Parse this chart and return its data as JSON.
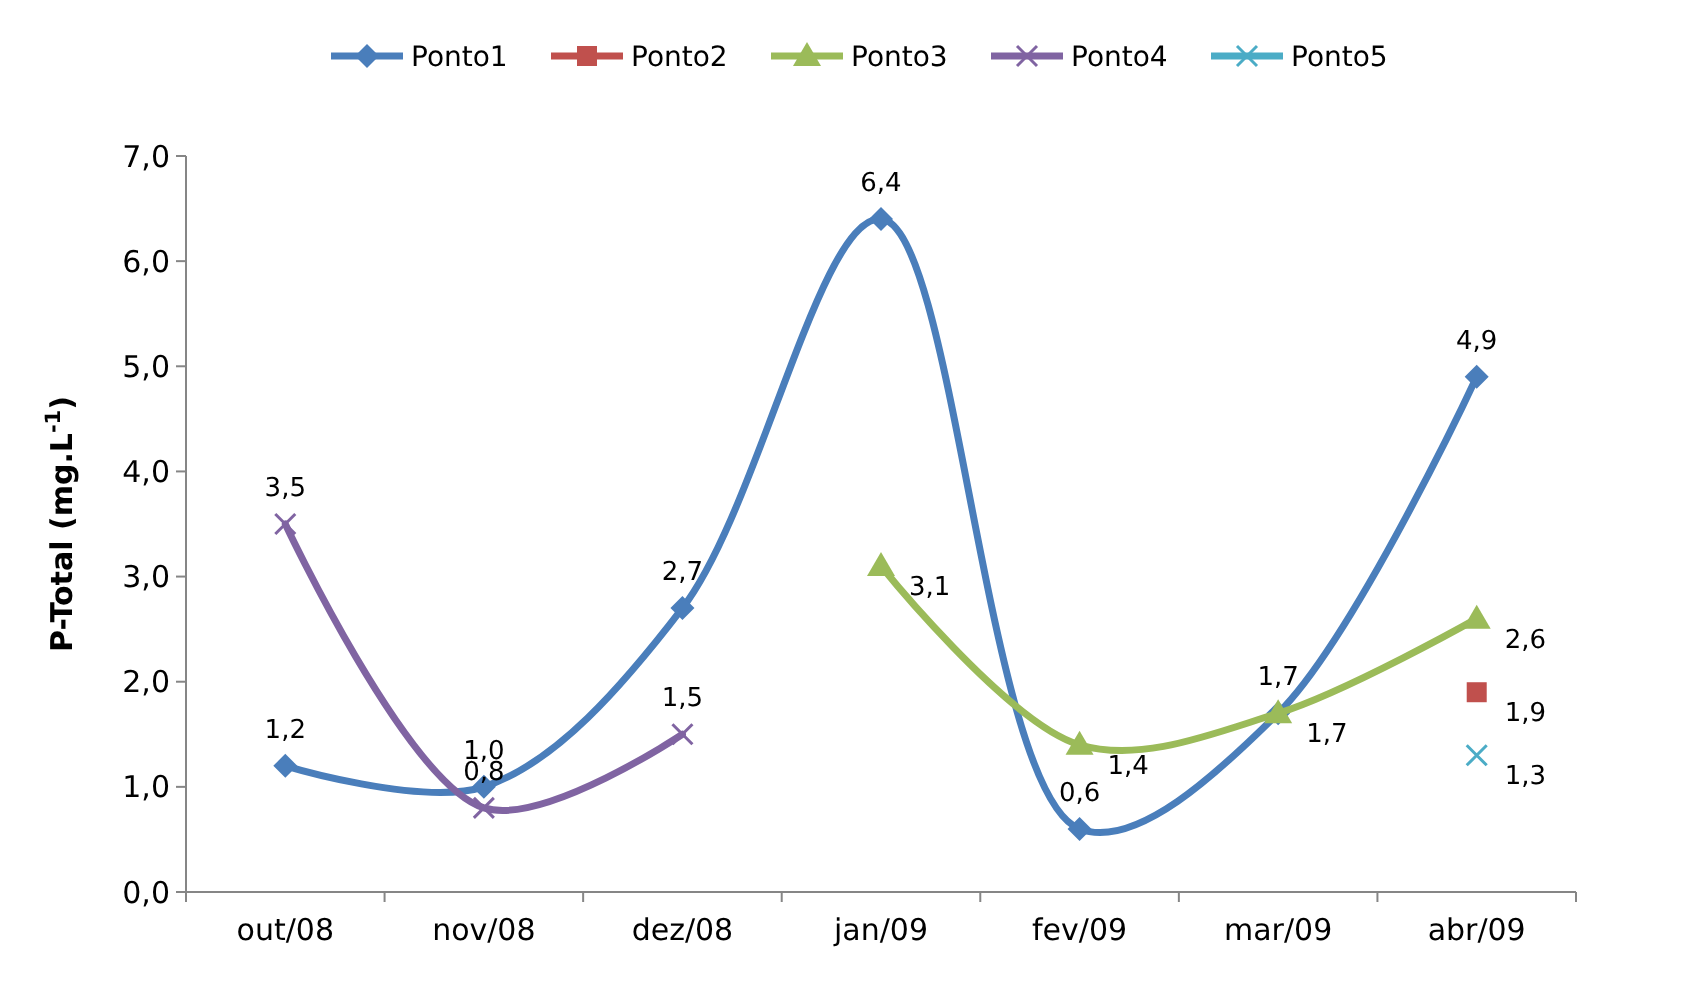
{
  "chart_data": {
    "type": "line",
    "ylabel": "P-Total (mg.L$^{-1}$)",
    "categories": [
      "out/08",
      "nov/08",
      "dez/08",
      "jan/09",
      "fev/09",
      "mar/09",
      "abr/09"
    ],
    "ylim": [
      0,
      7
    ],
    "yticks": [
      {
        "value": 0,
        "label": "0,0"
      },
      {
        "value": 1,
        "label": "1,0"
      },
      {
        "value": 2,
        "label": "2,0"
      },
      {
        "value": 3,
        "label": "3,0"
      },
      {
        "value": 4,
        "label": "4,0"
      },
      {
        "value": 5,
        "label": "5,0"
      },
      {
        "value": 6,
        "label": "6,0"
      },
      {
        "value": 7,
        "label": "7,0"
      }
    ],
    "grid": false,
    "legend": "top",
    "series": [
      {
        "name": "Ponto1",
        "color": "#4a7ebb",
        "marker": "diamond",
        "values": [
          1.2,
          1.0,
          2.7,
          6.4,
          0.6,
          1.7,
          4.9
        ],
        "value_labels": [
          "1,2",
          "1,0",
          "2,7",
          "6,4",
          "0,6",
          "1,7",
          "4,9"
        ]
      },
      {
        "name": "Ponto2",
        "color": "#c0504d",
        "marker": "square",
        "values": [
          null,
          null,
          null,
          null,
          null,
          null,
          1.9
        ],
        "value_labels": [
          null,
          null,
          null,
          null,
          null,
          null,
          "1,9"
        ]
      },
      {
        "name": "Ponto3",
        "color": "#9bbb59",
        "marker": "triangle",
        "values": [
          null,
          null,
          null,
          3.1,
          1.4,
          1.7,
          2.6
        ],
        "value_labels": [
          null,
          null,
          null,
          "3,1",
          "1,4",
          "1,7",
          "2,6"
        ]
      },
      {
        "name": "Ponto4",
        "color": "#8064a2",
        "marker": "cross",
        "values": [
          3.5,
          0.8,
          1.5,
          null,
          null,
          null,
          null
        ],
        "value_labels": [
          "3,5",
          "0,8",
          "1,5",
          null,
          null,
          null,
          null
        ]
      },
      {
        "name": "Ponto5",
        "color": "#4bacc6",
        "marker": "cross",
        "values": [
          null,
          null,
          null,
          null,
          null,
          null,
          1.3
        ],
        "value_labels": [
          null,
          null,
          null,
          null,
          null,
          null,
          "1,3"
        ]
      }
    ]
  }
}
